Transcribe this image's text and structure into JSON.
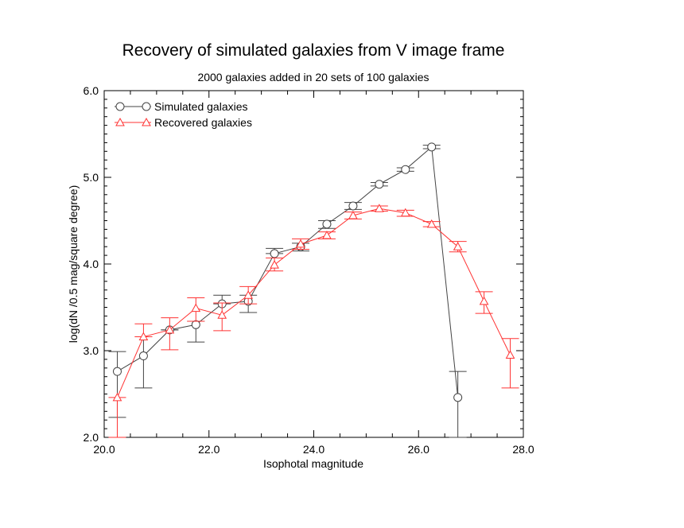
{
  "chart_data": {
    "type": "line",
    "title": "Recovery of simulated galaxies from V image frame",
    "subtitle": "2000 galaxies added in 20 sets of 100 galaxies",
    "xlabel": "Isophotal magnitude",
    "ylabel": "log(dN /0.5 mag/square degree)",
    "xlim": [
      20.0,
      28.0
    ],
    "ylim": [
      2.0,
      6.0
    ],
    "x_ticks": [
      "20.0",
      "22.0",
      "24.0",
      "26.0",
      "28.0"
    ],
    "y_ticks": [
      "2.0",
      "3.0",
      "4.0",
      "5.0",
      "6.0"
    ],
    "grid": false,
    "legend_position": "top-left",
    "series": [
      {
        "name": "Simulated galaxies",
        "color": "#444444",
        "marker": "circle",
        "points": [
          {
            "x": 20.25,
            "y": 2.76,
            "lo": 2.23,
            "hi": 2.99
          },
          {
            "x": 20.75,
            "y": 2.94,
            "lo": 2.57,
            "hi": 3.16
          },
          {
            "x": 21.25,
            "y": 3.24,
            "lo": 3.24,
            "hi": 3.24
          },
          {
            "x": 21.75,
            "y": 3.3,
            "lo": 3.1,
            "hi": 3.34
          },
          {
            "x": 22.25,
            "y": 3.54,
            "lo": 3.54,
            "hi": 3.64
          },
          {
            "x": 22.75,
            "y": 3.57,
            "lo": 3.44,
            "hi": 3.64
          },
          {
            "x": 23.25,
            "y": 4.12,
            "lo": 4.12,
            "hi": 4.18
          },
          {
            "x": 23.75,
            "y": 4.2,
            "lo": 4.15,
            "hi": 4.24
          },
          {
            "x": 24.25,
            "y": 4.46,
            "lo": 4.41,
            "hi": 4.5
          },
          {
            "x": 24.75,
            "y": 4.67,
            "lo": 4.63,
            "hi": 4.71
          },
          {
            "x": 25.25,
            "y": 4.92,
            "lo": 4.9,
            "hi": 4.94
          },
          {
            "x": 25.75,
            "y": 5.09,
            "lo": 5.07,
            "hi": 5.11
          },
          {
            "x": 26.25,
            "y": 5.35,
            "lo": 5.33,
            "hi": 5.37
          },
          {
            "x": 26.75,
            "y": 2.46,
            "lo": 2.0,
            "hi": 2.76
          }
        ]
      },
      {
        "name": "Recovered galaxies",
        "color": "#ff3333",
        "marker": "triangle",
        "points": [
          {
            "x": 20.25,
            "y": 2.46,
            "lo": 2.0,
            "hi": 2.46
          },
          {
            "x": 20.75,
            "y": 3.16,
            "lo": 3.16,
            "hi": 3.31
          },
          {
            "x": 21.25,
            "y": 3.24,
            "lo": 3.01,
            "hi": 3.38
          },
          {
            "x": 21.75,
            "y": 3.49,
            "lo": 3.34,
            "hi": 3.61
          },
          {
            "x": 22.25,
            "y": 3.41,
            "lo": 3.23,
            "hi": 3.55
          },
          {
            "x": 22.75,
            "y": 3.64,
            "lo": 3.54,
            "hi": 3.74
          },
          {
            "x": 23.25,
            "y": 3.99,
            "lo": 3.92,
            "hi": 4.07
          },
          {
            "x": 23.75,
            "y": 4.23,
            "lo": 4.17,
            "hi": 4.29
          },
          {
            "x": 24.25,
            "y": 4.33,
            "lo": 4.29,
            "hi": 4.37
          },
          {
            "x": 24.75,
            "y": 4.56,
            "lo": 4.52,
            "hi": 4.6
          },
          {
            "x": 25.25,
            "y": 4.64,
            "lo": 4.61,
            "hi": 4.67
          },
          {
            "x": 25.75,
            "y": 4.59,
            "lo": 4.55,
            "hi": 4.62
          },
          {
            "x": 26.25,
            "y": 4.46,
            "lo": 4.43,
            "hi": 4.49
          },
          {
            "x": 26.75,
            "y": 4.2,
            "lo": 4.14,
            "hi": 4.26
          },
          {
            "x": 27.25,
            "y": 3.57,
            "lo": 3.43,
            "hi": 3.68
          },
          {
            "x": 27.75,
            "y": 2.95,
            "lo": 2.57,
            "hi": 3.14
          }
        ]
      }
    ]
  }
}
